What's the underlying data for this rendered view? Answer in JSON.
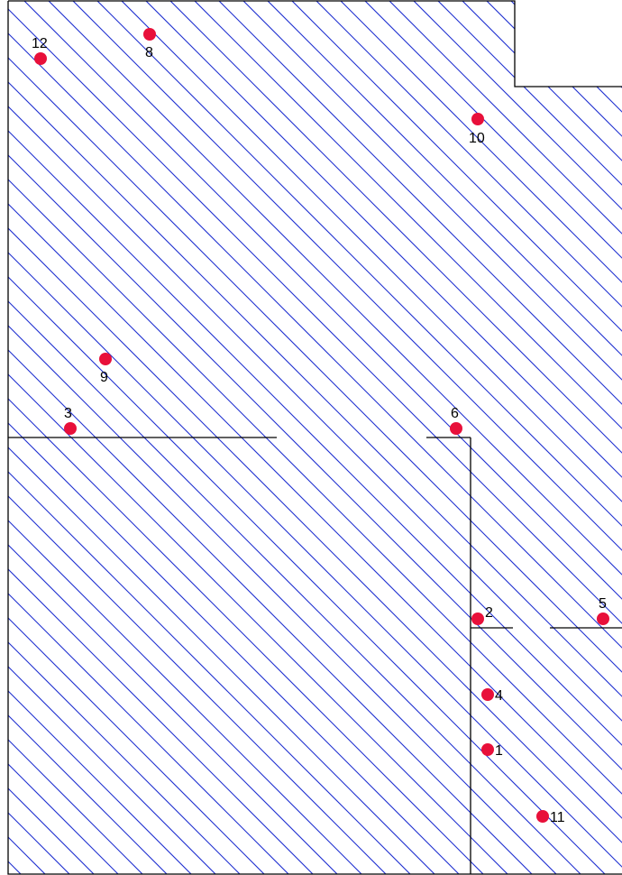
{
  "points": [
    {
      "label": "1"
    },
    {
      "label": "2"
    },
    {
      "label": "3"
    },
    {
      "label": "4"
    },
    {
      "label": "5"
    },
    {
      "label": "6"
    },
    {
      "label": "8"
    },
    {
      "label": "9"
    },
    {
      "label": "10"
    },
    {
      "label": "11"
    },
    {
      "label": "12"
    }
  ],
  "colors": {
    "hatch": "#1e2fd0",
    "marker": "#e8103a",
    "outline": "#000000",
    "background": "#ffffff"
  }
}
